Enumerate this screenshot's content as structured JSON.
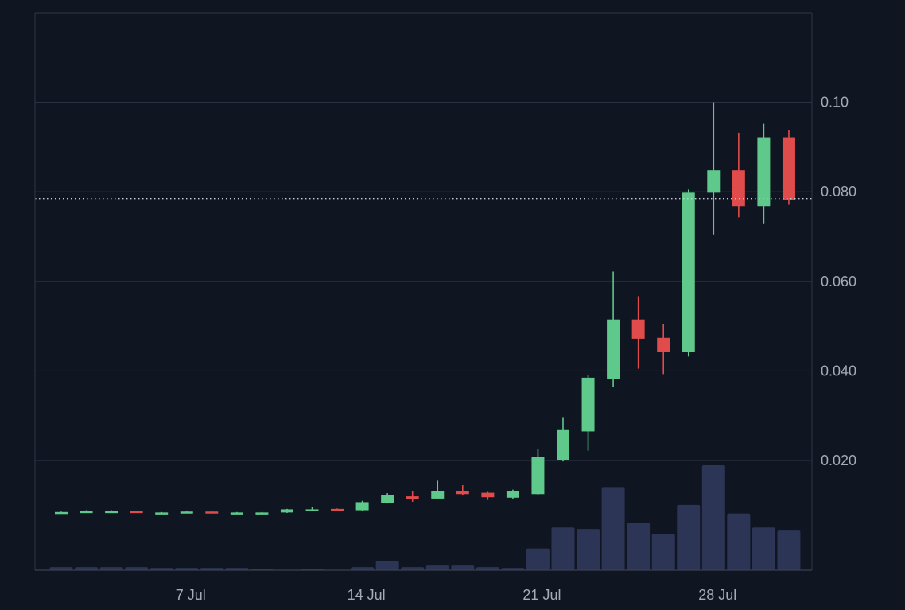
{
  "chart_data": {
    "type": "candlestick",
    "x_tick_labels": [
      "7 Jul",
      "14 Jul",
      "21 Jul",
      "28 Jul"
    ],
    "y_tick_labels": [
      "0.10",
      "0.080",
      "0.060",
      "0.040",
      "0.020"
    ],
    "y_ticks": [
      0.1,
      0.08,
      0.06,
      0.04,
      0.02
    ],
    "ylim": [
      -0.0045,
      0.12
    ],
    "current_price": 0.0785,
    "grid": true,
    "colors": {
      "background": "#0f1521",
      "grid": "#2b3141",
      "axis_text": "#a6abb5",
      "up": "#5ec98a",
      "down": "#e04b4b",
      "volume": "#2c3556",
      "price_line": "#c8ccd4"
    },
    "candles": [
      {
        "date": "2 Jul",
        "open": 0.0085,
        "high": 0.0086,
        "low": 0.0084,
        "close": 0.0085
      },
      {
        "date": "3 Jul",
        "open": 0.0084,
        "high": 0.0089,
        "low": 0.0083,
        "close": 0.0087
      },
      {
        "date": "4 Jul",
        "open": 0.0086,
        "high": 0.0089,
        "low": 0.0085,
        "close": 0.0087
      },
      {
        "date": "5 Jul",
        "open": 0.0087,
        "high": 0.0088,
        "low": 0.0083,
        "close": 0.0084
      },
      {
        "date": "6 Jul",
        "open": 0.0083,
        "high": 0.0085,
        "low": 0.0082,
        "close": 0.0084
      },
      {
        "date": "7 Jul",
        "open": 0.0083,
        "high": 0.0087,
        "low": 0.0082,
        "close": 0.0086
      },
      {
        "date": "8 Jul",
        "open": 0.0086,
        "high": 0.0087,
        "low": 0.0082,
        "close": 0.0083
      },
      {
        "date": "9 Jul",
        "open": 0.0083,
        "high": 0.0085,
        "low": 0.0082,
        "close": 0.0084
      },
      {
        "date": "10 Jul",
        "open": 0.0084,
        "high": 0.0085,
        "low": 0.0082,
        "close": 0.0084
      },
      {
        "date": "11 Jul",
        "open": 0.0084,
        "high": 0.0092,
        "low": 0.0083,
        "close": 0.0091
      },
      {
        "date": "12 Jul",
        "open": 0.0088,
        "high": 0.0097,
        "low": 0.0087,
        "close": 0.0091
      },
      {
        "date": "13 Jul",
        "open": 0.0092,
        "high": 0.0093,
        "low": 0.0087,
        "close": 0.0088
      },
      {
        "date": "14 Jul",
        "open": 0.0089,
        "high": 0.011,
        "low": 0.0087,
        "close": 0.0107
      },
      {
        "date": "15 Jul",
        "open": 0.0105,
        "high": 0.0127,
        "low": 0.0104,
        "close": 0.0122
      },
      {
        "date": "16 Jul",
        "open": 0.012,
        "high": 0.0132,
        "low": 0.0108,
        "close": 0.0113
      },
      {
        "date": "17 Jul",
        "open": 0.0115,
        "high": 0.0155,
        "low": 0.0113,
        "close": 0.0132
      },
      {
        "date": "18 Jul",
        "open": 0.0131,
        "high": 0.0145,
        "low": 0.0122,
        "close": 0.0125
      },
      {
        "date": "19 Jul",
        "open": 0.0128,
        "high": 0.013,
        "low": 0.0112,
        "close": 0.0118
      },
      {
        "date": "20 Jul",
        "open": 0.0117,
        "high": 0.0135,
        "low": 0.0115,
        "close": 0.0132
      },
      {
        "date": "21 Jul",
        "open": 0.0125,
        "high": 0.0225,
        "low": 0.0124,
        "close": 0.0208
      },
      {
        "date": "22 Jul",
        "open": 0.0201,
        "high": 0.0297,
        "low": 0.0198,
        "close": 0.0268
      },
      {
        "date": "23 Jul",
        "open": 0.0265,
        "high": 0.0392,
        "low": 0.0222,
        "close": 0.0385
      },
      {
        "date": "24 Jul",
        "open": 0.0382,
        "high": 0.0622,
        "low": 0.0365,
        "close": 0.0515
      },
      {
        "date": "25 Jul",
        "open": 0.0515,
        "high": 0.0567,
        "low": 0.0405,
        "close": 0.0472
      },
      {
        "date": "26 Jul",
        "open": 0.0474,
        "high": 0.0505,
        "low": 0.0393,
        "close": 0.0443
      },
      {
        "date": "27 Jul",
        "open": 0.0443,
        "high": 0.0805,
        "low": 0.0432,
        "close": 0.0798
      },
      {
        "date": "28 Jul",
        "open": 0.0798,
        "high": 0.1,
        "low": 0.0705,
        "close": 0.0848
      },
      {
        "date": "29 Jul",
        "open": 0.0848,
        "high": 0.0932,
        "low": 0.0743,
        "close": 0.0768
      },
      {
        "date": "30 Jul",
        "open": 0.0768,
        "high": 0.0952,
        "low": 0.0728,
        "close": 0.0922
      },
      {
        "date": "31 Jul",
        "open": 0.0922,
        "high": 0.0938,
        "low": 0.0771,
        "close": 0.0782
      }
    ],
    "volume": [
      4,
      4,
      4,
      4,
      3,
      3,
      3,
      3,
      2,
      0,
      2,
      0,
      4,
      12,
      4,
      6,
      6,
      4,
      3,
      28,
      55,
      53,
      107,
      61,
      47,
      84,
      135,
      73,
      55,
      51
    ]
  }
}
